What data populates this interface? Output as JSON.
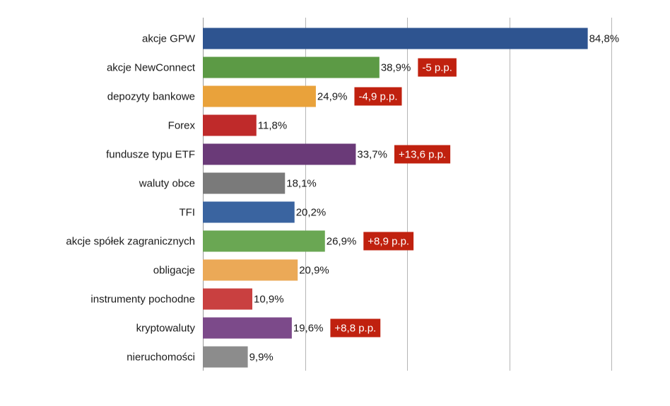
{
  "chart_data": {
    "type": "bar",
    "orientation": "horizontal",
    "categories": [
      "akcje GPW",
      "akcje NewConnect",
      "depozyty bankowe",
      "Forex",
      "fundusze typu ETF",
      "waluty obce",
      "TFI",
      "akcje spółek zagranicznych",
      "obligacje",
      "instrumenty pochodne",
      "kryptowaluty",
      "nieruchomości"
    ],
    "values": [
      84.8,
      38.9,
      24.9,
      11.8,
      33.7,
      18.1,
      20.2,
      26.9,
      20.9,
      10.9,
      19.6,
      9.9
    ],
    "value_labels": [
      "84,8%",
      "38,9%",
      "24,9%",
      "11,8%",
      "33,7%",
      "18,1%",
      "20,2%",
      "26,9%",
      "20,9%",
      "10,9%",
      "19,6%",
      "9,9%"
    ],
    "colors": [
      "#2e5490",
      "#5c9a45",
      "#e9a23b",
      "#bf2a2a",
      "#6a3a78",
      "#7a7a7a",
      "#3a64a0",
      "#6aa753",
      "#eba957",
      "#c94040",
      "#7c4a8a",
      "#8c8c8c"
    ],
    "change_labels": [
      "",
      "-5 p.p.",
      "-4,9 p.p.",
      "",
      "+13,6 p.p.",
      "",
      "",
      "+8,9 p.p.",
      "",
      "",
      "+8,8 p.p.",
      ""
    ],
    "change_color": "#c0210f",
    "xlim": [
      0,
      90
    ],
    "grid_values": [
      0,
      22.5,
      45,
      67.5,
      90
    ],
    "grid": true,
    "title": "",
    "xlabel": "",
    "ylabel": ""
  }
}
